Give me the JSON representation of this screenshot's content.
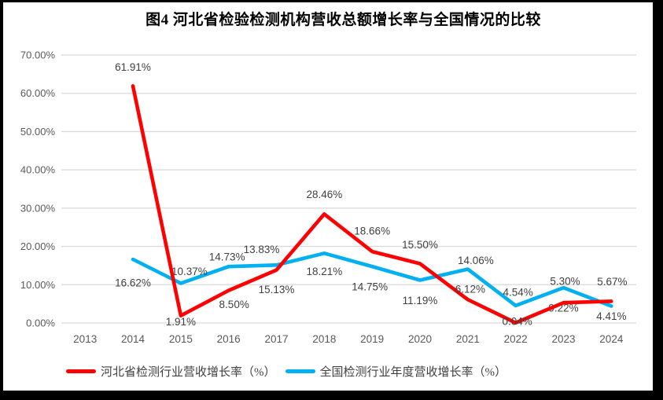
{
  "chart_data": {
    "type": "line",
    "title": "图4  河北省检验检测机构营收总额增长率与全国情况的比较",
    "categories": [
      "2013",
      "2014",
      "2015",
      "2016",
      "2017",
      "2018",
      "2019",
      "2020",
      "2021",
      "2022",
      "2023",
      "2024"
    ],
    "series": [
      {
        "name": "河北省检测行业营收增长率（%）",
        "color": "#FF0000",
        "values": [
          null,
          61.91,
          1.91,
          8.5,
          13.83,
          28.46,
          18.66,
          15.5,
          6.12,
          0.04,
          5.3,
          5.67
        ],
        "labels": [
          "",
          "61.91%",
          "1.91%",
          "8.50%",
          "13.83%",
          "28.46%",
          "18.66%",
          "15.50%",
          "6.12%",
          "0.04%",
          "5.30%",
          "5.67%"
        ],
        "label_offsets": [
          [
            0,
            0
          ],
          [
            0,
            -24
          ],
          [
            0,
            8
          ],
          [
            7,
            18
          ],
          [
            -19,
            -26
          ],
          [
            0,
            -25
          ],
          [
            0,
            -26
          ],
          [
            0,
            -24
          ],
          [
            3,
            -13
          ],
          [
            2,
            -2
          ],
          [
            2,
            -27
          ],
          [
            1,
            -25
          ]
        ]
      },
      {
        "name": "全国检测行业年度营收增长率（%）",
        "color": "#00B0F0",
        "values": [
          null,
          16.62,
          10.37,
          14.73,
          15.13,
          18.21,
          14.75,
          11.19,
          14.06,
          4.54,
          9.22,
          4.41
        ],
        "labels": [
          "",
          "16.62%",
          "10.37%",
          "14.73%",
          "15.13%",
          "18.21%",
          "14.75%",
          "11.19%",
          "14.06%",
          "4.54%",
          "9.22%",
          "4.41%"
        ],
        "label_offsets": [
          [
            0,
            0
          ],
          [
            0,
            30
          ],
          [
            11,
            -15
          ],
          [
            -2,
            -12
          ],
          [
            0,
            31
          ],
          [
            0,
            23
          ],
          [
            -3,
            26
          ],
          [
            0,
            26
          ],
          [
            10,
            -11
          ],
          [
            3,
            -17
          ],
          [
            0,
            26
          ],
          [
            0,
            13
          ]
        ]
      }
    ],
    "y_axis": {
      "min": 0,
      "max": 70,
      "step": 10,
      "tick_labels": [
        "0.00%",
        "10.00%",
        "20.00%",
        "30.00%",
        "40.00%",
        "50.00%",
        "60.00%",
        "70.00%"
      ]
    },
    "x_axis_label": "",
    "y_axis_label": "",
    "grid": true,
    "legend_position": "bottom",
    "colors": {
      "gridline": "#D9D9D9",
      "axis_text": "#595959",
      "data_label_text": "#404040",
      "background": "#FFFFFF",
      "frame_border": "#000000"
    }
  }
}
